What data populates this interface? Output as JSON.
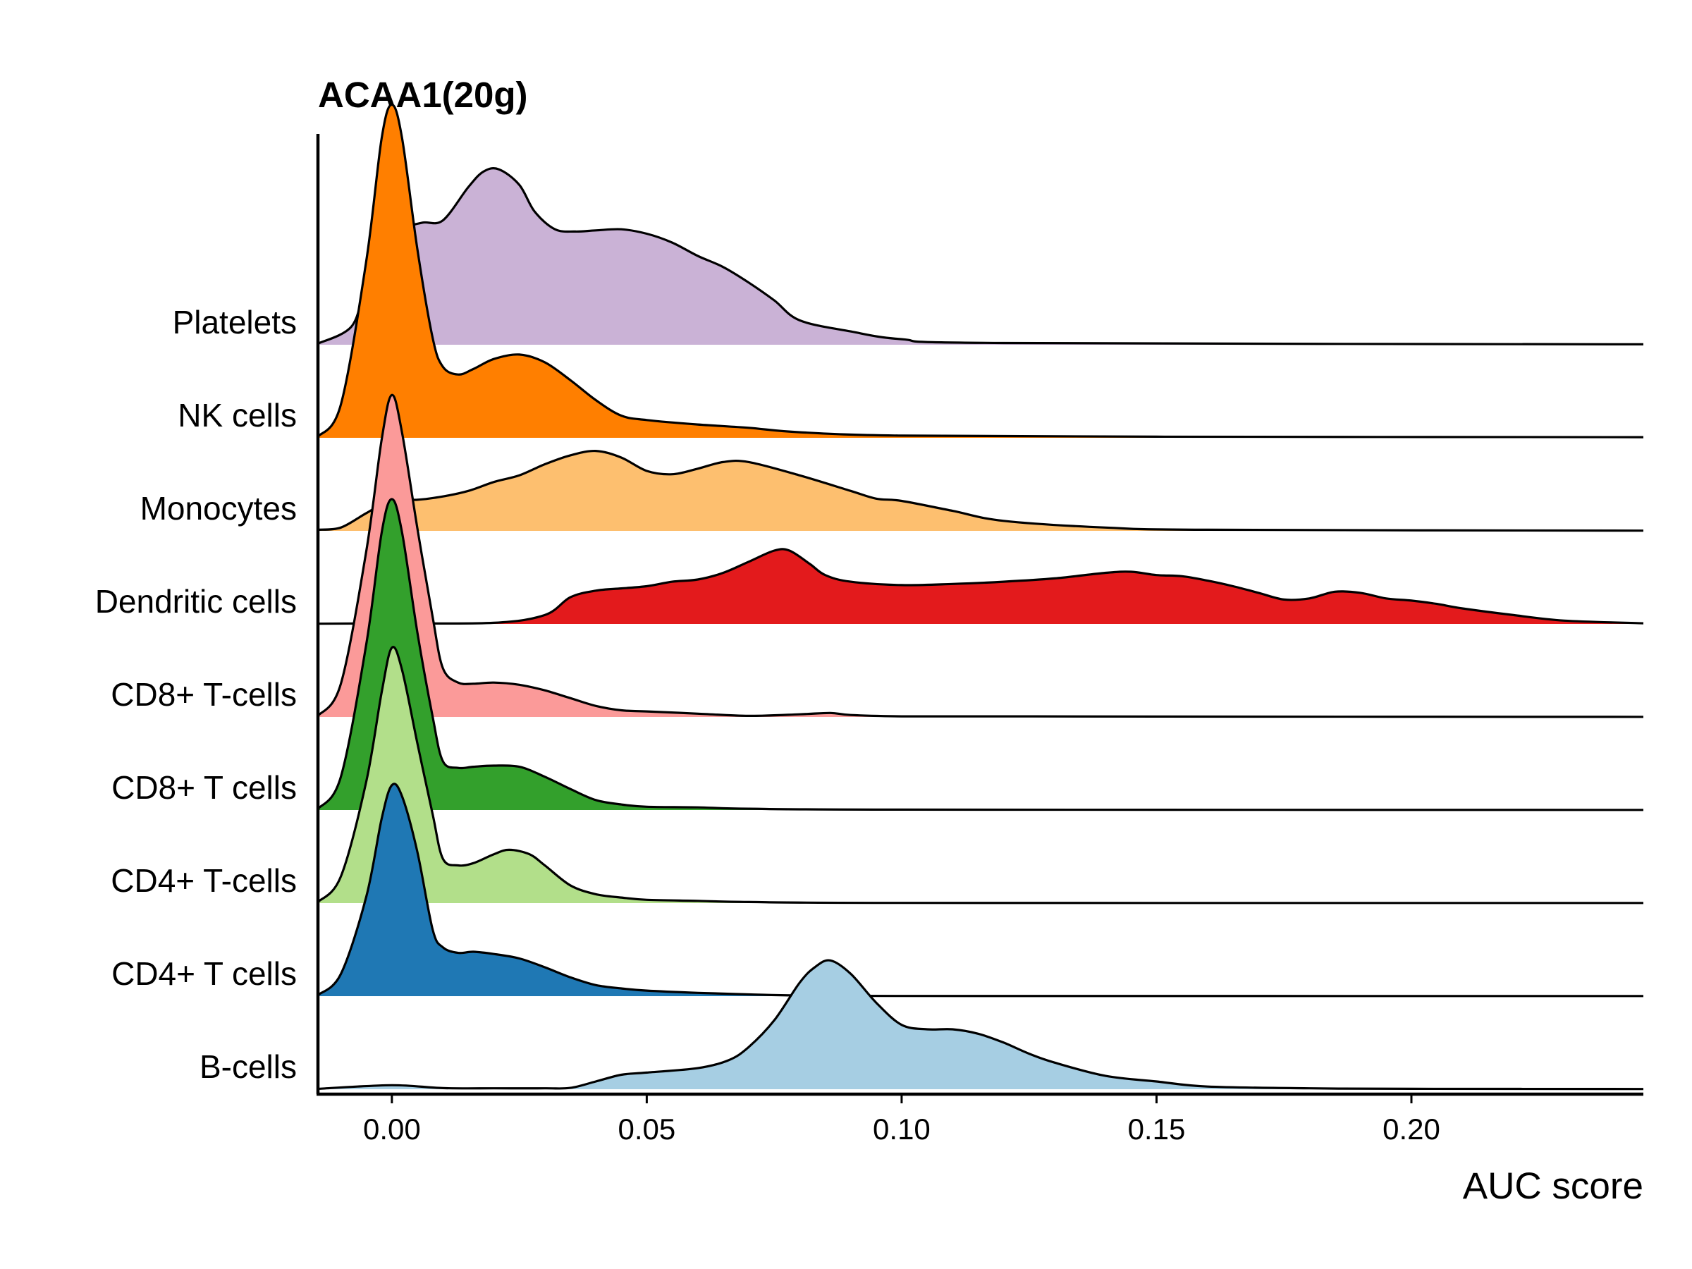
{
  "chart_data": {
    "type": "ridgeline",
    "title": "ACAA1(20g)",
    "xlabel": "AUC score",
    "ylabel": "",
    "xlim": [
      -0.0145,
      0.2455
    ],
    "xticks": [
      "0.00",
      "0.05",
      "0.10",
      "0.15",
      "0.20"
    ],
    "grid": false,
    "legend": "none",
    "series": [
      {
        "name": "B-cells",
        "color": "#a6cee3",
        "x": [
          -0.0145,
          0.0,
          0.01,
          0.02,
          0.03,
          0.035,
          0.04,
          0.045,
          0.05,
          0.06,
          0.066,
          0.07,
          0.075,
          0.08,
          0.083,
          0.086,
          0.09,
          0.095,
          0.1,
          0.105,
          0.11,
          0.115,
          0.12,
          0.125,
          0.13,
          0.14,
          0.15,
          0.16,
          0.18,
          0.2,
          0.2455
        ],
        "density": [
          0.2,
          1.8,
          0.5,
          0.4,
          0.4,
          0.6,
          3.5,
          6.5,
          7.5,
          9.5,
          13,
          19,
          31,
          48,
          55,
          58,
          52,
          39,
          29,
          27,
          27,
          25,
          21,
          16,
          12,
          6,
          3.5,
          1.2,
          0.4,
          0.2,
          0.1
        ]
      },
      {
        "name": "CD4+ T cells",
        "color": "#1f78b4",
        "x": [
          -0.0145,
          -0.01,
          -0.005,
          -0.002,
          0.0,
          0.002,
          0.005,
          0.008,
          0.01,
          0.013,
          0.016,
          0.02,
          0.025,
          0.03,
          0.035,
          0.04,
          0.045,
          0.05,
          0.06,
          0.07,
          0.08,
          0.1,
          0.2455
        ],
        "density": [
          0.5,
          10,
          45,
          80,
          95,
          90,
          65,
          30,
          22,
          19.5,
          20,
          19,
          17,
          13,
          8.5,
          5,
          3.5,
          2.5,
          1.5,
          0.8,
          0.3,
          0.1,
          0.05
        ]
      },
      {
        "name": "CD4+ T-cells",
        "color": "#b2df8a",
        "x": [
          -0.0145,
          -0.01,
          -0.005,
          -0.002,
          0.0,
          0.002,
          0.005,
          0.008,
          0.01,
          0.013,
          0.016,
          0.02,
          0.023,
          0.027,
          0.03,
          0.035,
          0.04,
          0.045,
          0.05,
          0.06,
          0.07,
          0.1,
          0.2455
        ],
        "density": [
          0.5,
          12,
          55,
          95,
          115,
          105,
          72,
          40,
          20,
          17,
          18,
          22,
          24,
          22,
          17,
          8,
          4,
          2.5,
          1.5,
          1,
          0.5,
          0.1,
          0.05
        ]
      },
      {
        "name": "CD8+ T cells",
        "color": "#33a02c",
        "x": [
          -0.0145,
          -0.01,
          -0.005,
          -0.002,
          0.0,
          0.002,
          0.005,
          0.008,
          0.01,
          0.013,
          0.016,
          0.02,
          0.025,
          0.03,
          0.035,
          0.04,
          0.045,
          0.05,
          0.06,
          0.07,
          0.1,
          0.2455
        ],
        "density": [
          0.5,
          15,
          75,
          125,
          140,
          125,
          80,
          42,
          22,
          19,
          19.5,
          20,
          19.5,
          15,
          9.5,
          4.5,
          2.5,
          1.5,
          1.2,
          0.6,
          0.2,
          0.05
        ]
      },
      {
        "name": "CD8+ T-cells",
        "color": "#fb9a99",
        "x": [
          -0.0145,
          -0.01,
          -0.005,
          -0.002,
          0.0,
          0.002,
          0.005,
          0.008,
          0.01,
          0.013,
          0.016,
          0.02,
          0.025,
          0.03,
          0.035,
          0.04,
          0.045,
          0.05,
          0.06,
          0.07,
          0.08,
          0.086,
          0.09,
          0.1,
          0.12,
          0.15,
          0.2455
        ],
        "density": [
          0.5,
          15,
          75,
          125,
          145,
          128,
          85,
          45,
          22,
          15.5,
          15,
          15.5,
          14.5,
          12,
          8.5,
          5,
          3,
          2.5,
          1.5,
          0.5,
          1.2,
          1.8,
          0.9,
          0.3,
          0.3,
          0.2,
          0.05
        ]
      },
      {
        "name": "Dendritic cells",
        "color": "#e31a1c",
        "x": [
          -0.0145,
          0.0,
          0.02,
          0.03,
          0.035,
          0.04,
          0.045,
          0.05,
          0.055,
          0.06,
          0.065,
          0.07,
          0.075,
          0.078,
          0.082,
          0.085,
          0.09,
          0.1,
          0.11,
          0.12,
          0.13,
          0.14,
          0.145,
          0.15,
          0.155,
          0.16,
          0.165,
          0.17,
          0.175,
          0.18,
          0.185,
          0.19,
          0.195,
          0.2,
          0.205,
          0.21,
          0.22,
          0.23,
          0.2455
        ],
        "density": [
          0.1,
          0.3,
          0.5,
          4,
          12,
          15,
          16,
          17,
          19,
          20,
          23,
          28,
          33,
          33,
          27,
          22,
          19,
          17.5,
          18,
          19,
          20.5,
          23,
          23.5,
          22,
          21.5,
          19.5,
          17,
          14,
          11,
          11.5,
          14.5,
          14,
          11.5,
          10.5,
          9,
          7,
          4,
          1.5,
          0.3
        ]
      },
      {
        "name": "Monocytes",
        "color": "#fdbf6f",
        "x": [
          -0.0145,
          -0.01,
          -0.005,
          0.0,
          0.005,
          0.01,
          0.015,
          0.02,
          0.025,
          0.03,
          0.035,
          0.04,
          0.045,
          0.05,
          0.055,
          0.06,
          0.065,
          0.07,
          0.08,
          0.09,
          0.095,
          0.1,
          0.11,
          0.12,
          0.14,
          0.16,
          0.2455
        ],
        "density": [
          0.5,
          1.5,
          8,
          14,
          14,
          15.5,
          18,
          22,
          25,
          30,
          34,
          36,
          33,
          27,
          25.5,
          28,
          31,
          31,
          25,
          18,
          14.5,
          13.5,
          9,
          4.5,
          1.5,
          0.5,
          0.1
        ]
      },
      {
        "name": "NK cells",
        "color": "#ff7f00",
        "x": [
          -0.0145,
          -0.01,
          -0.005,
          -0.002,
          0.0,
          0.002,
          0.005,
          0.008,
          0.01,
          0.013,
          0.016,
          0.02,
          0.025,
          0.03,
          0.035,
          0.04,
          0.045,
          0.05,
          0.06,
          0.07,
          0.08,
          0.1,
          0.15,
          0.2455
        ],
        "density": [
          0.5,
          15,
          80,
          135,
          150,
          135,
          85,
          45,
          32,
          28.5,
          31,
          35.5,
          37.5,
          34,
          26,
          17,
          10,
          8,
          6,
          4.5,
          2.5,
          1,
          0.5,
          0.3
        ]
      },
      {
        "name": "Platelets",
        "color": "#cab2d6",
        "x": [
          -0.0145,
          -0.008,
          -0.005,
          0.0,
          0.003,
          0.006,
          0.01,
          0.015,
          0.018,
          0.021,
          0.025,
          0.028,
          0.032,
          0.036,
          0.04,
          0.045,
          0.05,
          0.055,
          0.06,
          0.065,
          0.07,
          0.075,
          0.08,
          0.09,
          0.1,
          0.12,
          0.2455
        ],
        "density": [
          0.5,
          8,
          25,
          40,
          52,
          55,
          56,
          71,
          78,
          79,
          72,
          60,
          52,
          51,
          51.5,
          52,
          50,
          46,
          40,
          35,
          28,
          20,
          11,
          6,
          2.5,
          0.8,
          0.2
        ]
      }
    ]
  }
}
